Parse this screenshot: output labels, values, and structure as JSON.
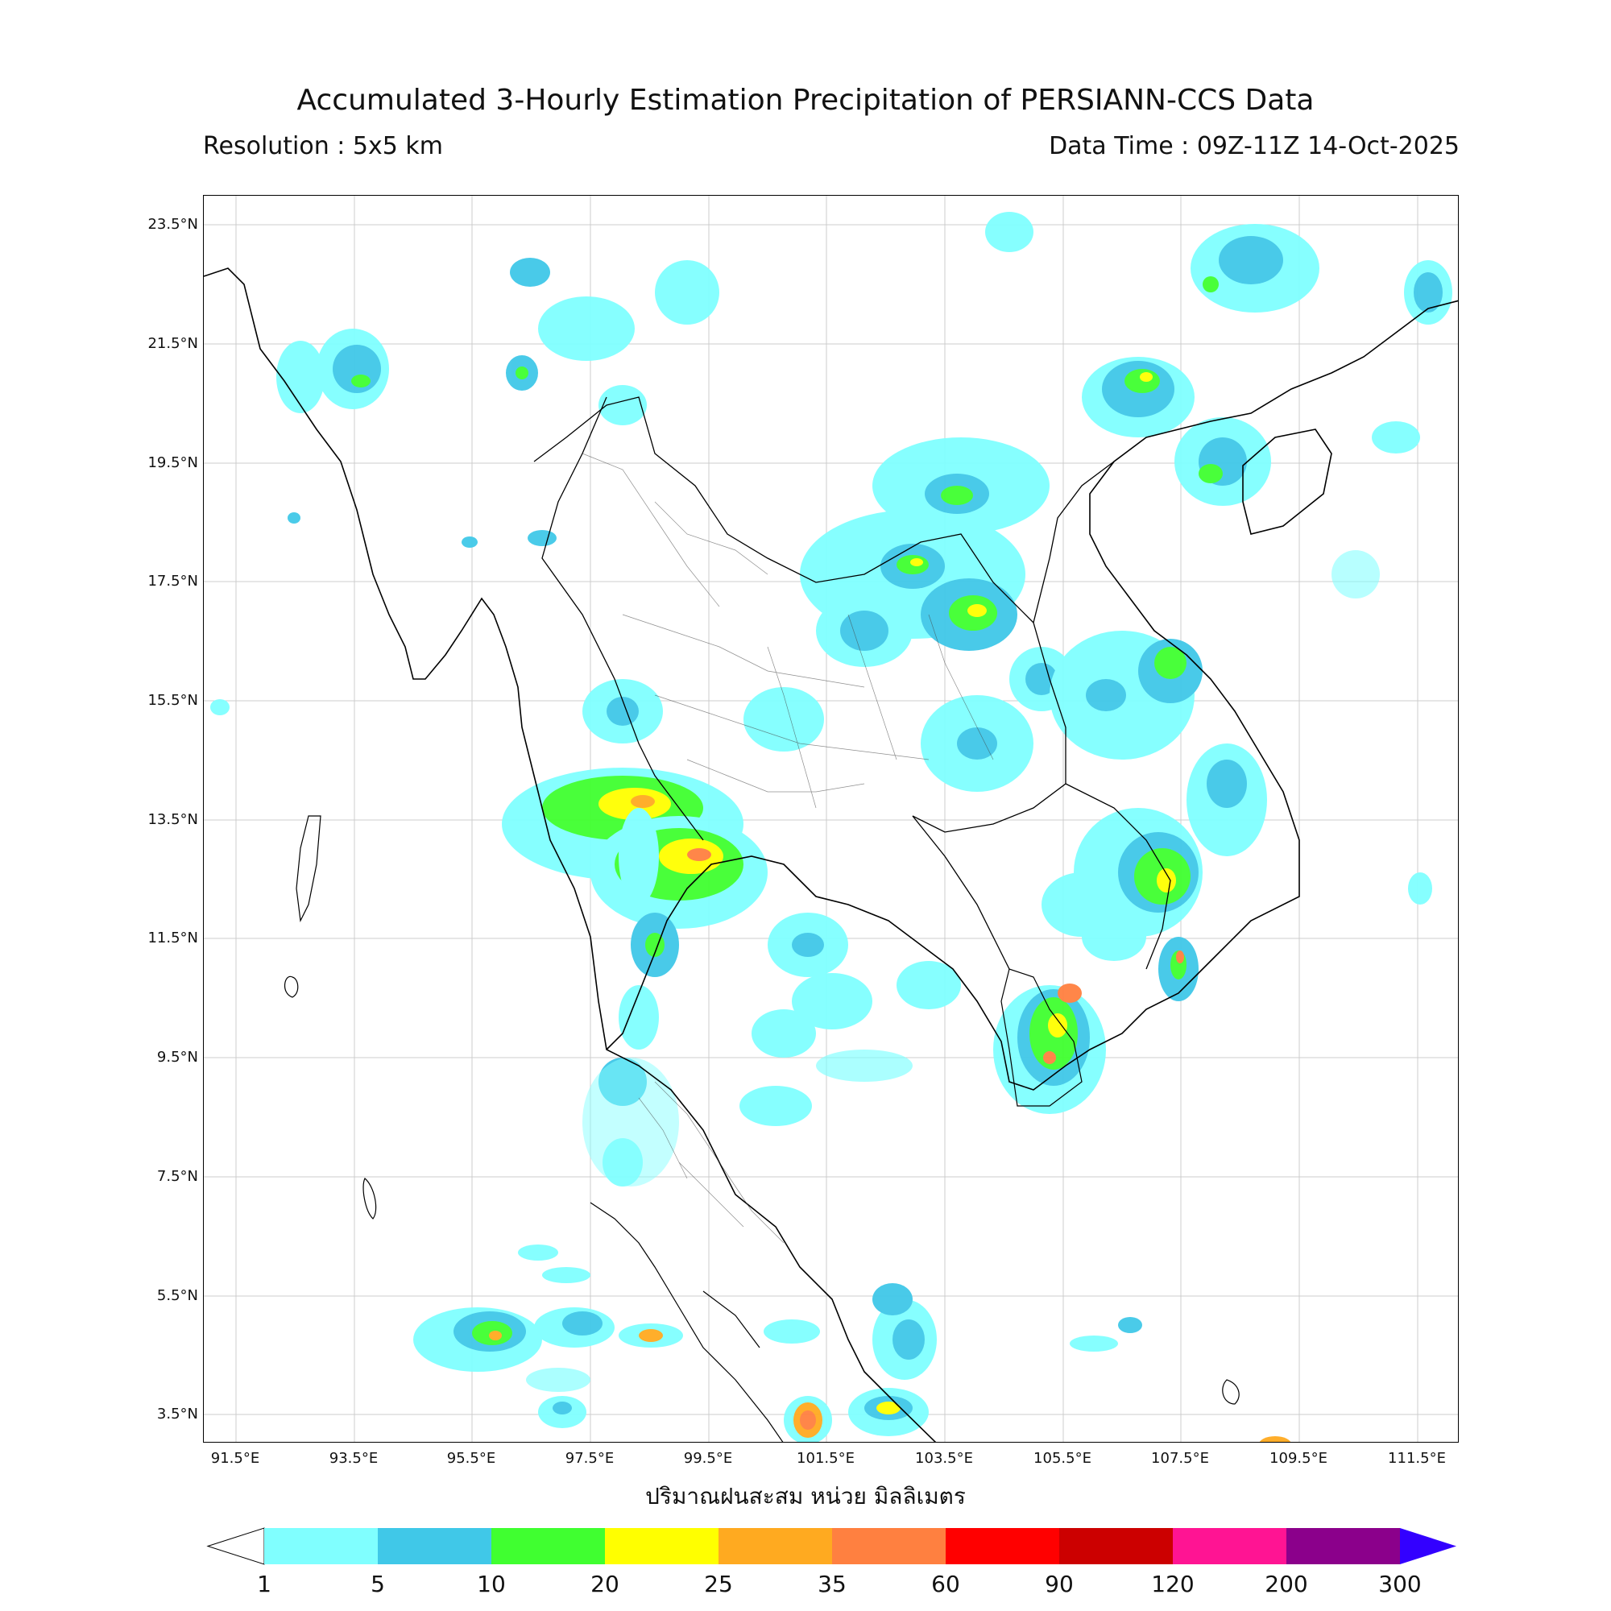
{
  "title": "Accumulated 3-Hourly Estimation Precipitation of PERSIANN-CCS Data",
  "resolution": "Resolution : 5x5 km",
  "data_time": "Data Time : 09Z-11Z 14-Oct-2025",
  "xlabel": "ปริมาณฝนสะสม หน่วย มิลลิเมตร",
  "lat_labels": [
    "23.5°N",
    "21.5°N",
    "19.5°N",
    "17.5°N",
    "15.5°N",
    "13.5°N",
    "11.5°N",
    "9.5°N",
    "7.5°N",
    "5.5°N",
    "3.5°N"
  ],
  "lon_labels": [
    "91.5°E",
    "93.5°E",
    "95.5°E",
    "97.5°E",
    "99.5°E",
    "101.5°E",
    "103.5°E",
    "105.5°E",
    "107.5°E",
    "109.5°E",
    "111.5°E"
  ],
  "colorbar": {
    "ticks": [
      "1",
      "5",
      "10",
      "20",
      "25",
      "35",
      "60",
      "90",
      "120",
      "200",
      "300"
    ],
    "colors": [
      "#80ffff",
      "#40c8e8",
      "#40ff30",
      "#ffff00",
      "#ffaa20",
      "#ff8040",
      "#ff0000",
      "#cc0000",
      "#ff1493",
      "#8b008b"
    ],
    "over_color": "#3300ff",
    "under_color": "#ffffff"
  }
}
